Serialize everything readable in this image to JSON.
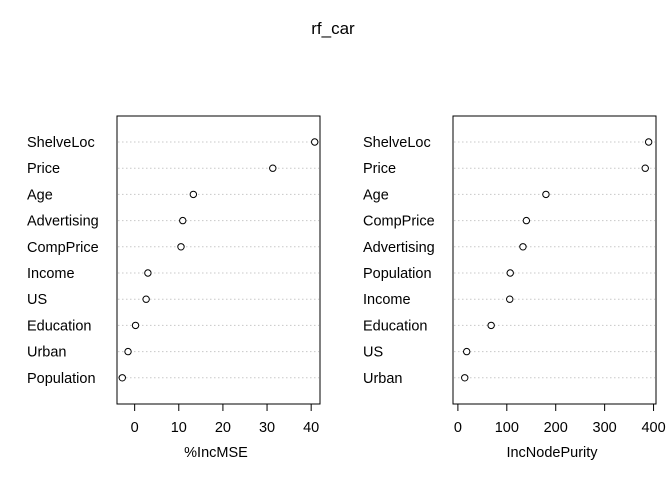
{
  "chart_data": [
    {
      "type": "scatter",
      "title": "rf_car",
      "xlabel": "%IncMSE",
      "xlim": [
        -4,
        42
      ],
      "xticks": [
        0,
        10,
        20,
        30,
        40
      ],
      "categories": [
        "ShelveLoc",
        "Price",
        "Age",
        "Advertising",
        "CompPrice",
        "Income",
        "US",
        "Education",
        "Urban",
        "Population"
      ],
      "values": [
        40.8,
        31.3,
        13.3,
        10.9,
        10.5,
        3.0,
        2.6,
        0.2,
        -1.5,
        -2.8
      ],
      "grid": "dotted horizontal"
    },
    {
      "type": "scatter",
      "xlabel": "IncNodePurity",
      "xlim": [
        -10,
        405
      ],
      "xticks": [
        0,
        100,
        200,
        300,
        400
      ],
      "categories": [
        "ShelveLoc",
        "Price",
        "Age",
        "CompPrice",
        "Advertising",
        "Population",
        "Income",
        "Education",
        "US",
        "Urban"
      ],
      "values": [
        390,
        383,
        180,
        140,
        133,
        107,
        106,
        68,
        18,
        14
      ],
      "grid": "dotted horizontal"
    }
  ]
}
